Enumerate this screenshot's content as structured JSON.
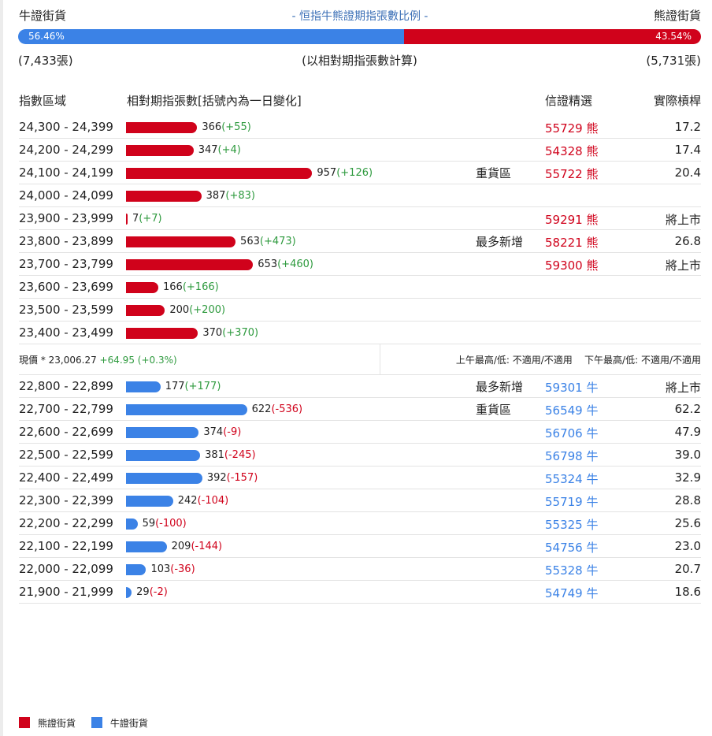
{
  "header": {
    "left_label": "牛證街貨",
    "title": "- 恒指牛熊證期指張數比例 -",
    "right_label": "熊證街貨"
  },
  "ratio": {
    "bull_pct": "56.46%",
    "bear_pct": "43.54%",
    "bull_fraction": 0.5646,
    "bull_color": "#3b82e6",
    "bear_color": "#d0021b"
  },
  "counts": {
    "bull": "(7,433張)",
    "note": "(以相對期指張數計算)",
    "bear": "(5,731張)"
  },
  "columns": {
    "range": "指數區域",
    "contracts": "相對期指張數[括號內為一日變化]",
    "pick": "信證精選",
    "leverage": "實際槓桿"
  },
  "bear_rows": [
    {
      "range": "24,300 - 24,399",
      "count": 366,
      "count_text": "366",
      "change": "(+55)",
      "change_sign": "pos",
      "tag": "",
      "code": "55729 熊",
      "leverage": "17.2"
    },
    {
      "range": "24,200 - 24,299",
      "count": 347,
      "count_text": "347",
      "change": "(+4)",
      "change_sign": "pos",
      "tag": "",
      "code": "54328 熊",
      "leverage": "17.4"
    },
    {
      "range": "24,100 - 24,199",
      "count": 957,
      "count_text": "957",
      "change": "(+126)",
      "change_sign": "pos",
      "tag": "重貨區",
      "code": "55722 熊",
      "leverage": "20.4"
    },
    {
      "range": "24,000 - 24,099",
      "count": 387,
      "count_text": "387",
      "change": "(+83)",
      "change_sign": "pos",
      "tag": "",
      "code": "",
      "leverage": ""
    },
    {
      "range": "23,900 - 23,999",
      "count": 7,
      "count_text": "7",
      "change": "(+7)",
      "change_sign": "pos",
      "tag": "",
      "code": "59291 熊",
      "leverage": "將上市"
    },
    {
      "range": "23,800 - 23,899",
      "count": 563,
      "count_text": "563",
      "change": "(+473)",
      "change_sign": "pos",
      "tag": "最多新增",
      "code": "58221 熊",
      "leverage": "26.8"
    },
    {
      "range": "23,700 - 23,799",
      "count": 653,
      "count_text": "653",
      "change": "(+460)",
      "change_sign": "pos",
      "tag": "",
      "code": "59300 熊",
      "leverage": "將上市"
    },
    {
      "range": "23,600 - 23,699",
      "count": 166,
      "count_text": "166",
      "change": "(+166)",
      "change_sign": "pos",
      "tag": "",
      "code": "",
      "leverage": ""
    },
    {
      "range": "23,500 - 23,599",
      "count": 200,
      "count_text": "200",
      "change": "(+200)",
      "change_sign": "pos",
      "tag": "",
      "code": "",
      "leverage": ""
    },
    {
      "range": "23,400 - 23,499",
      "count": 370,
      "count_text": "370",
      "change": "(+370)",
      "change_sign": "pos",
      "tag": "",
      "code": "",
      "leverage": ""
    }
  ],
  "quote": {
    "label": "現價 * ",
    "price": "23,006.27",
    "change": "+64.95 (+0.3%)",
    "am": "上午最高/低: 不適用/不適用",
    "pm": "下午最高/低: 不適用/不適用"
  },
  "bull_rows": [
    {
      "range": "22,800 - 22,899",
      "count": 177,
      "count_text": "177",
      "change": "(+177)",
      "change_sign": "pos",
      "tag": "最多新增",
      "code": "59301 牛",
      "leverage": "將上市"
    },
    {
      "range": "22,700 - 22,799",
      "count": 622,
      "count_text": "622",
      "change": "(-536)",
      "change_sign": "neg",
      "tag": "重貨區",
      "code": "56549 牛",
      "leverage": "62.2"
    },
    {
      "range": "22,600 - 22,699",
      "count": 374,
      "count_text": "374",
      "change": "(-9)",
      "change_sign": "neg",
      "tag": "",
      "code": "56706 牛",
      "leverage": "47.9"
    },
    {
      "range": "22,500 - 22,599",
      "count": 381,
      "count_text": "381",
      "change": "(-245)",
      "change_sign": "neg",
      "tag": "",
      "code": "56798 牛",
      "leverage": "39.0"
    },
    {
      "range": "22,400 - 22,499",
      "count": 392,
      "count_text": "392",
      "change": "(-157)",
      "change_sign": "neg",
      "tag": "",
      "code": "55324 牛",
      "leverage": "32.9"
    },
    {
      "range": "22,300 - 22,399",
      "count": 242,
      "count_text": "242",
      "change": "(-104)",
      "change_sign": "neg",
      "tag": "",
      "code": "55719 牛",
      "leverage": "28.8"
    },
    {
      "range": "22,200 - 22,299",
      "count": 59,
      "count_text": "59",
      "change": "(-100)",
      "change_sign": "neg",
      "tag": "",
      "code": "55325 牛",
      "leverage": "25.6"
    },
    {
      "range": "22,100 - 22,199",
      "count": 209,
      "count_text": "209",
      "change": "(-144)",
      "change_sign": "neg",
      "tag": "",
      "code": "54756 牛",
      "leverage": "23.0"
    },
    {
      "range": "22,000 - 22,099",
      "count": 103,
      "count_text": "103",
      "change": "(-36)",
      "change_sign": "neg",
      "tag": "",
      "code": "55328 牛",
      "leverage": "20.7"
    },
    {
      "range": "21,900 - 21,999",
      "count": 29,
      "count_text": "29",
      "change": "(-2)",
      "change_sign": "neg",
      "tag": "",
      "code": "54749 牛",
      "leverage": "18.6"
    }
  ],
  "legend": {
    "bear": "熊證街貨",
    "bull": "牛證街貨"
  }
}
